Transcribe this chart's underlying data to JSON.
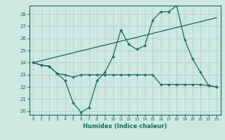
{
  "xlabel": "Humidex (Indice chaleur)",
  "bg_color": "#cce8e0",
  "grid_color": "#aacccc",
  "line_color": "#1a6b5a",
  "xlim": [
    -0.5,
    23.5
  ],
  "ylim": [
    19.7,
    28.7
  ],
  "yticks": [
    20,
    21,
    22,
    23,
    24,
    25,
    26,
    27,
    28
  ],
  "xticks": [
    0,
    1,
    2,
    3,
    4,
    5,
    6,
    7,
    8,
    9,
    10,
    11,
    12,
    13,
    14,
    15,
    16,
    17,
    18,
    19,
    20,
    21,
    22,
    23
  ],
  "line1_x": [
    0,
    1,
    2,
    3,
    4,
    5,
    6,
    7,
    8,
    9,
    10,
    11,
    12,
    13,
    14,
    15,
    16,
    17,
    18,
    19,
    20,
    21,
    22,
    23
  ],
  "line1_y": [
    24.0,
    23.8,
    23.7,
    23.1,
    22.5,
    20.7,
    19.9,
    20.3,
    22.5,
    23.2,
    24.5,
    26.7,
    25.5,
    25.1,
    25.4,
    27.5,
    28.2,
    28.2,
    28.7,
    25.9,
    24.3,
    23.2,
    22.1,
    22.0
  ],
  "line2_x": [
    0,
    1,
    2,
    3,
    4,
    5,
    6,
    7,
    8,
    9,
    10,
    11,
    12,
    13,
    14,
    15,
    16,
    17,
    18,
    19,
    20,
    21,
    22,
    23
  ],
  "line2_y": [
    24.0,
    23.8,
    23.7,
    23.1,
    23.0,
    22.8,
    23.0,
    23.0,
    23.0,
    23.0,
    23.0,
    23.0,
    23.0,
    23.0,
    23.0,
    23.0,
    22.2,
    22.2,
    22.2,
    22.2,
    22.2,
    22.2,
    22.1,
    22.0
  ],
  "line3_x": [
    0,
    23
  ],
  "line3_y": [
    24.0,
    27.7
  ]
}
